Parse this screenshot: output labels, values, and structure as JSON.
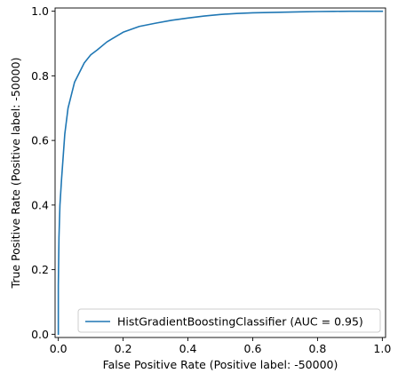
{
  "chart_data": {
    "type": "line",
    "title": "",
    "xlabel": "False Positive Rate (Positive label: -50000)",
    "ylabel": "True Positive Rate (Positive label: -50000)",
    "xlim": [
      -0.01,
      1.01
    ],
    "ylim": [
      -0.01,
      1.01
    ],
    "x_ticks": [
      0.0,
      0.2,
      0.4,
      0.6,
      0.8,
      1.0
    ],
    "y_ticks": [
      0.0,
      0.2,
      0.4,
      0.6,
      0.8,
      1.0
    ],
    "x_tick_labels": [
      "0.0",
      "0.2",
      "0.4",
      "0.6",
      "0.8",
      "1.0"
    ],
    "y_tick_labels": [
      "0.0",
      "0.2",
      "0.4",
      "0.6",
      "0.8",
      "1.0"
    ],
    "grid": false,
    "legend_position": "lower-right",
    "series": [
      {
        "name": "HistGradientBoostingClassifier (AUC = 0.95)",
        "color": "#1f77b4",
        "x": [
          0.0,
          0.0,
          0.002,
          0.005,
          0.01,
          0.015,
          0.02,
          0.03,
          0.04,
          0.05,
          0.06,
          0.07,
          0.08,
          0.1,
          0.12,
          0.15,
          0.2,
          0.25,
          0.3,
          0.35,
          0.4,
          0.45,
          0.5,
          0.55,
          0.6,
          0.65,
          0.7,
          0.75,
          0.8,
          0.85,
          0.9,
          0.95,
          1.0
        ],
        "y": [
          0.0,
          0.15,
          0.3,
          0.4,
          0.48,
          0.55,
          0.62,
          0.7,
          0.74,
          0.78,
          0.8,
          0.82,
          0.84,
          0.865,
          0.88,
          0.905,
          0.935,
          0.953,
          0.963,
          0.972,
          0.979,
          0.985,
          0.99,
          0.993,
          0.995,
          0.996,
          0.997,
          0.998,
          0.999,
          0.9995,
          1.0,
          1.0,
          1.0
        ]
      }
    ]
  }
}
